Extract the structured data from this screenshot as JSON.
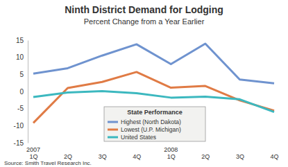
{
  "chart_data": {
    "type": "line",
    "title": "Ninth District Demand for Lodging",
    "subtitle": "Percent Change from a Year Earlier",
    "categories": [
      "1Q",
      "2Q",
      "3Q",
      "4Q",
      "1Q",
      "2Q",
      "3Q",
      "4Q"
    ],
    "annotations": [
      {
        "text": "2007",
        "category_index": 0
      },
      {
        "text": "2008",
        "category_index": 4
      },
      {
        "text": "Source: Smith Travel Research Inc."
      }
    ],
    "legend_title": "State Performance",
    "legend": "lower center",
    "series": [
      {
        "name": "Highest (North Dakota)",
        "color": "#6f93cf",
        "values": [
          5.2,
          6.8,
          10.5,
          13.8,
          8.0,
          14.0,
          3.5,
          2.4
        ]
      },
      {
        "name": "Lowest (U.P. Michigan)",
        "color": "#e07b45",
        "values": [
          -9.2,
          1.0,
          2.8,
          5.7,
          1.1,
          1.6,
          -2.6,
          -5.6
        ]
      },
      {
        "name": "United States",
        "color": "#3cb8bf",
        "values": [
          -1.6,
          -0.3,
          0.1,
          -0.5,
          -1.8,
          -1.5,
          -2.3,
          -6.0
        ]
      }
    ],
    "ylim": [
      -15,
      15
    ],
    "yticks": [
      -15,
      -10,
      -5,
      0,
      5,
      10,
      15
    ],
    "grid": false
  }
}
